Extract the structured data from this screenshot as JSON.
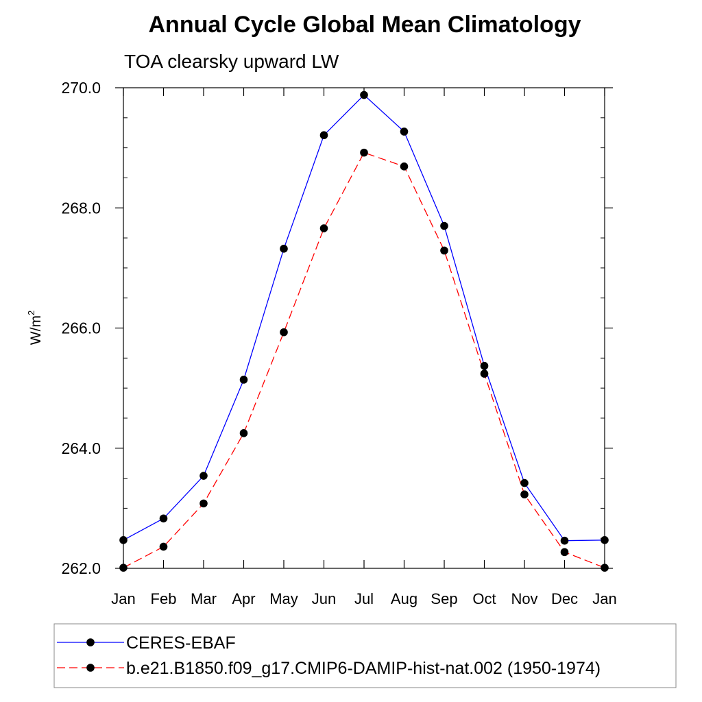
{
  "chart_data": {
    "type": "line",
    "title": "Annual Cycle Global Mean Climatology",
    "subtitle": "TOA clearsky upward LW",
    "ylabel": "W/m",
    "ylabel_superscript": "2",
    "categories": [
      "Jan",
      "Feb",
      "Mar",
      "Apr",
      "May",
      "Jun",
      "Jul",
      "Aug",
      "Sep",
      "Oct",
      "Nov",
      "Dec",
      "Jan"
    ],
    "ylim": [
      262.0,
      270.0
    ],
    "yticks": [
      "262.0",
      "264.0",
      "266.0",
      "268.0",
      "270.0"
    ],
    "grid": false,
    "legend_position": "bottom",
    "series": [
      {
        "name": "CERES-EBAF",
        "color": "#0000ff",
        "line_style": "solid",
        "marker": "filled-circle",
        "values": [
          262.47,
          262.83,
          263.54,
          265.14,
          267.32,
          269.21,
          269.88,
          269.27,
          267.7,
          265.37,
          263.42,
          262.46,
          262.47
        ]
      },
      {
        "name": "b.e21.B1850.f09_g17.CMIP6-DAMIP-hist-nat.002 (1950-1974)",
        "color": "#ff0000",
        "line_style": "dashed",
        "marker": "filled-circle",
        "values": [
          262.01,
          262.36,
          263.08,
          264.25,
          265.93,
          267.66,
          268.92,
          268.69,
          267.29,
          265.24,
          263.23,
          262.27,
          262.01
        ]
      }
    ]
  }
}
